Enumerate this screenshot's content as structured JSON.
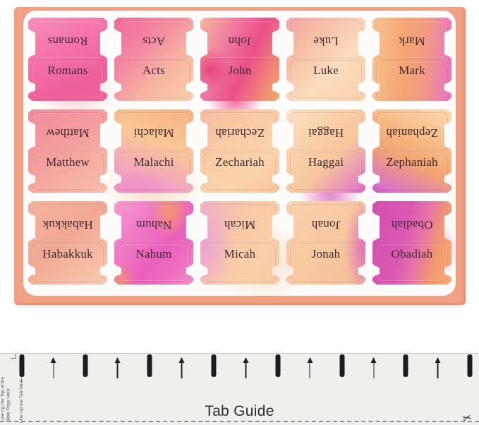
{
  "product_sheet": {
    "sheet_color": "#f2a184",
    "panel_color": "#fefcfa",
    "tab_text_color": "#3c2c34",
    "tabs": [
      {
        "label": "Romans",
        "angle": "155deg",
        "stops": [
          "#f98fb9 0%",
          "#f472a8 40%",
          "#ef5f99 75%",
          "#f0639b 100%"
        ]
      },
      {
        "label": "Acts",
        "angle": "135deg",
        "stops": [
          "#f1689a 0%",
          "#f48da1 40%",
          "#f7b5a2 65%",
          "#f9cda5 100%"
        ]
      },
      {
        "label": "John",
        "angle": "115deg",
        "stops": [
          "#f6b89b 0%",
          "#ef6f9e 38%",
          "#ea4f88 58%",
          "#f3986f 90%",
          "#f5a873 100%"
        ],
        "accent": "radial-gradient(45px 40px at 12% 62%, rgba(231,58,125,0.85), rgba(231,58,125,0) 72%)"
      },
      {
        "label": "Luke",
        "angle": "135deg",
        "stops": [
          "#f3a2a9 0%",
          "#f7c0a6 30%",
          "#fbdcbc 60%",
          "#f9d2ae 100%"
        ]
      },
      {
        "label": "Mark",
        "angle": "95deg",
        "stops": [
          "#f9c393 0%",
          "#f5a671 40%",
          "#f29a80 65%",
          "#ec7fb4 88%",
          "#e96fb4 100%"
        ]
      },
      {
        "label": "Matthew",
        "angle": "145deg",
        "stops": [
          "#f18c9b 0%",
          "#f49e9d 45%",
          "#f6b2a3 75%",
          "#f8bfa9 100%"
        ]
      },
      {
        "label": "Malachi",
        "angle": "200deg",
        "stops": [
          "#f6b285 0%",
          "#f9c795 40%",
          "#f09cc8 85%",
          "#ee8fc4 100%"
        ],
        "accent": "radial-gradient(60px 45px at 35% 100%, rgba(238,140,198,0.8), rgba(238,140,198,0) 75%)"
      },
      {
        "label": "Zechariah",
        "angle": "140deg",
        "stops": [
          "#f6bb9e 0%",
          "#f9cda6 40%",
          "#fad4ad 70%",
          "#f6c49c 100%"
        ]
      },
      {
        "label": "Haggai",
        "angle": "135deg",
        "stops": [
          "#fbe2c6 0%",
          "#f9d0a8 35%",
          "#f7c69c 60%",
          "#e27fc0 92%",
          "#d960ba 100%"
        ]
      },
      {
        "label": "Zephaniah",
        "angle": "205deg",
        "stops": [
          "#fbd9b0 0%",
          "#f6b680 40%",
          "#f2a473 60%",
          "#d974c4 90%",
          "#cb59c0 100%"
        ]
      },
      {
        "label": "Habakkuk",
        "angle": "140deg",
        "stops": [
          "#f4b39a 0%",
          "#f2a892 45%",
          "#f6bfa6 80%",
          "#f8c9ae 100%"
        ]
      },
      {
        "label": "Nahum",
        "angle": "130deg",
        "stops": [
          "#f79bd0 0%",
          "#f07cc6 30%",
          "#ea5fbc 60%",
          "#ee6fc0 80%",
          "#f090c9 100%"
        ],
        "accent": "radial-gradient(40px 55px at 70% 12%, rgba(246,159,88,0.8), rgba(246,159,88,0) 70%), radial-gradient(30px 40px at 8% 95%, rgba(246,159,88,0.7), rgba(246,159,88,0) 70%)"
      },
      {
        "label": "Micah",
        "angle": "120deg",
        "stops": [
          "#f2b4c0 0%",
          "#f8c9a6 45%",
          "#f9d0a9 75%",
          "#f6c8a2 100%"
        ],
        "accent": "radial-gradient(50px 95px at 8% 55%, rgba(238,160,216,0.85), rgba(238,160,216,0) 75%)"
      },
      {
        "label": "Jonah",
        "angle": "135deg",
        "stops": [
          "#f9d2ac 0%",
          "#f8c9a0 50%",
          "#f5bd96 100%"
        ],
        "accent": "radial-gradient(35px 95px at 97% 55%, rgba(221,100,187,0.85), rgba(221,100,187,0) 75%)"
      },
      {
        "label": "Obadiah",
        "angle": "105deg",
        "stops": [
          "#d44fb0 0%",
          "#da58b2 40%",
          "#e873a8 58%",
          "#f29a6e 78%",
          "#f5ab72 100%"
        ]
      }
    ]
  },
  "tab_guide": {
    "title": "Tab Guide",
    "instruction_line_up_top": "Line Up the Top of the",
    "instruction_line_up_top_2": "Bible Page Here",
    "instruction_line_up_tab": "Line Up the Tab Here",
    "scissors_icon": "✂",
    "bar_color": "#1c1c1c",
    "mark_pattern": [
      "bar",
      "arrow",
      "bar",
      "arrow",
      "bar",
      "arrow",
      "bar",
      "arrow",
      "bar",
      "arrow",
      "bar",
      "arrow",
      "bar",
      "arrow",
      "bar"
    ]
  }
}
